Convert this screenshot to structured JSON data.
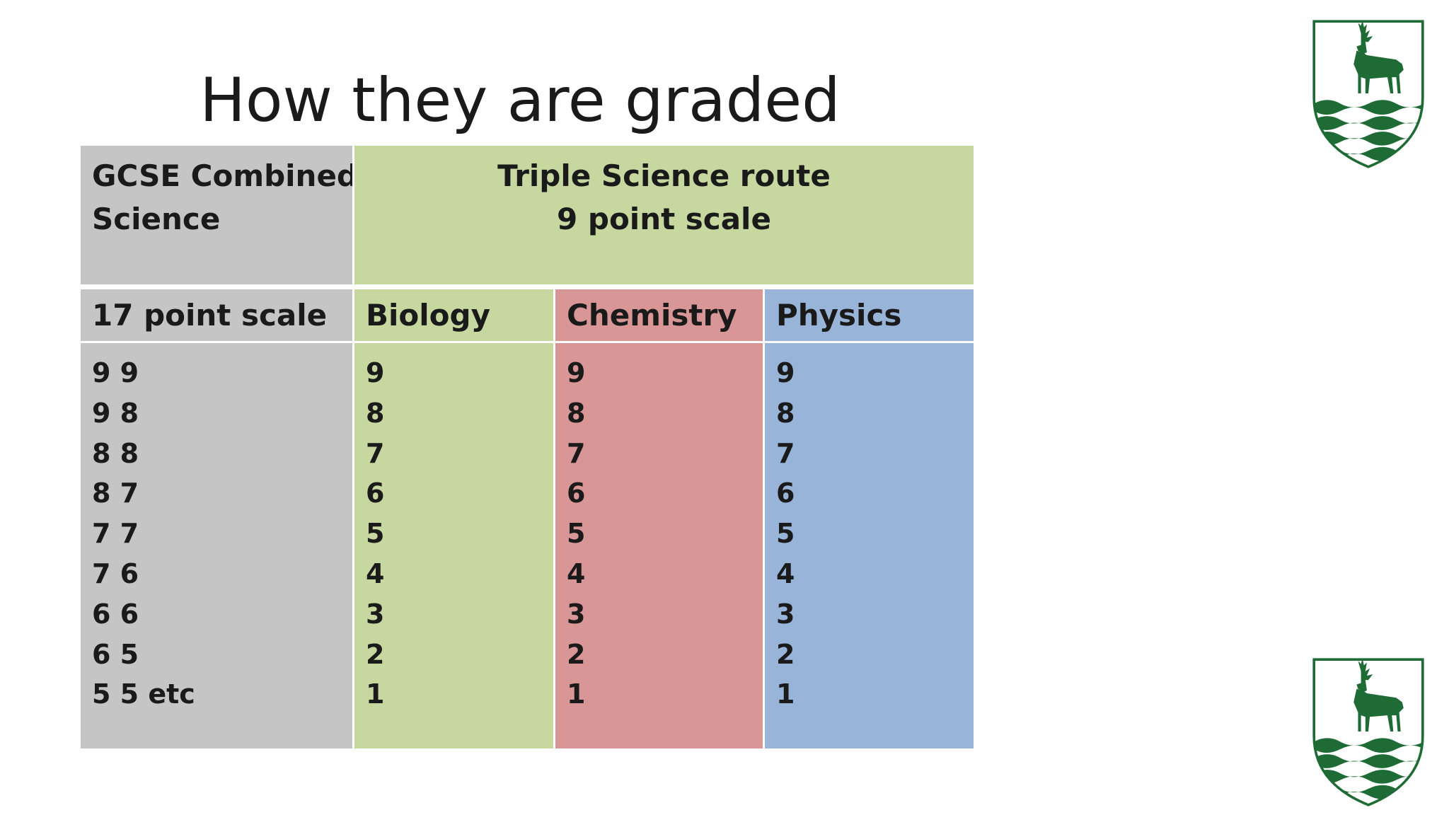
{
  "slide": {
    "title": "How they are graded"
  },
  "table": {
    "header_combined": [
      "GCSE Combined",
      "Science"
    ],
    "header_triple": [
      "Triple Science route",
      "9 point scale"
    ],
    "columns": [
      {
        "heading": "17 point scale",
        "values": [
          "9 9",
          "9 8",
          "8 8",
          "8 7",
          "7 7",
          "7 6",
          "6 6",
          "6 5",
          "5 5 etc"
        ]
      },
      {
        "heading": "Biology",
        "values": [
          "9",
          "8",
          "7",
          "6",
          "5",
          "4",
          "3",
          "2",
          "1"
        ]
      },
      {
        "heading": "Chemistry",
        "values": [
          "9",
          "8",
          "7",
          "6",
          "5",
          "4",
          "3",
          "2",
          "1"
        ]
      },
      {
        "heading": "Physics",
        "values": [
          "9",
          "8",
          "7",
          "6",
          "5",
          "4",
          "3",
          "2",
          "1"
        ]
      }
    ]
  },
  "crest": {
    "icon": "stag-crest-icon",
    "color": "#1e6b35"
  },
  "colors": {
    "grey": "#c5c5c5",
    "green": "#c6d8a0",
    "red": "#d99696",
    "blue": "#98b4d9"
  }
}
